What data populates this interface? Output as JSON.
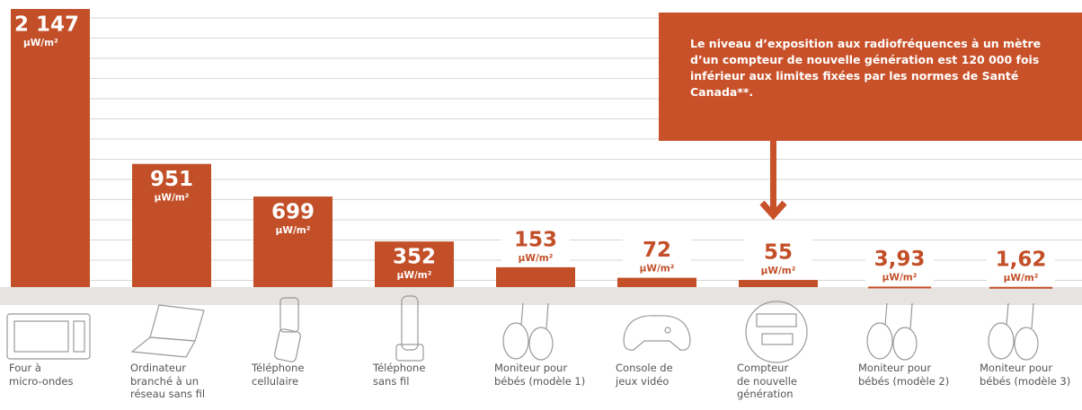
{
  "chart_data": {
    "type": "bar",
    "categories": [
      "Four à\nmicro-ondes",
      "Ordinateur\nbranché à un\nréseau sans fil",
      "Téléphone\ncellulaire",
      "Téléphone\nsans fil",
      "Moniteur pour\nbébés (modèle 1)",
      "Console de\njeux vidéo",
      "Compteur\nde nouvelle\ngénération",
      "Moniteur pour\nbébés (modèle 2)",
      "Moniteur pour\nbébés (modèle 3)"
    ],
    "values": [
      2147,
      951,
      699,
      352,
      153,
      72,
      55,
      3.93,
      1.62
    ],
    "value_labels": [
      "2 147",
      "951",
      "699",
      "352",
      "153",
      "72",
      "55",
      "3,93",
      "1,62"
    ],
    "unit": "µW/m²",
    "color": "#c24f28",
    "ylim": [
      0,
      2147
    ],
    "annotation": [
      "Le niveau d’exposition aux radiofréquences à un mètre d’un compteur de nouvelle génération est ",
      "120 000 fois inférieur",
      " aux limites fixées par les normes de Santé Canada**."
    ]
  }
}
